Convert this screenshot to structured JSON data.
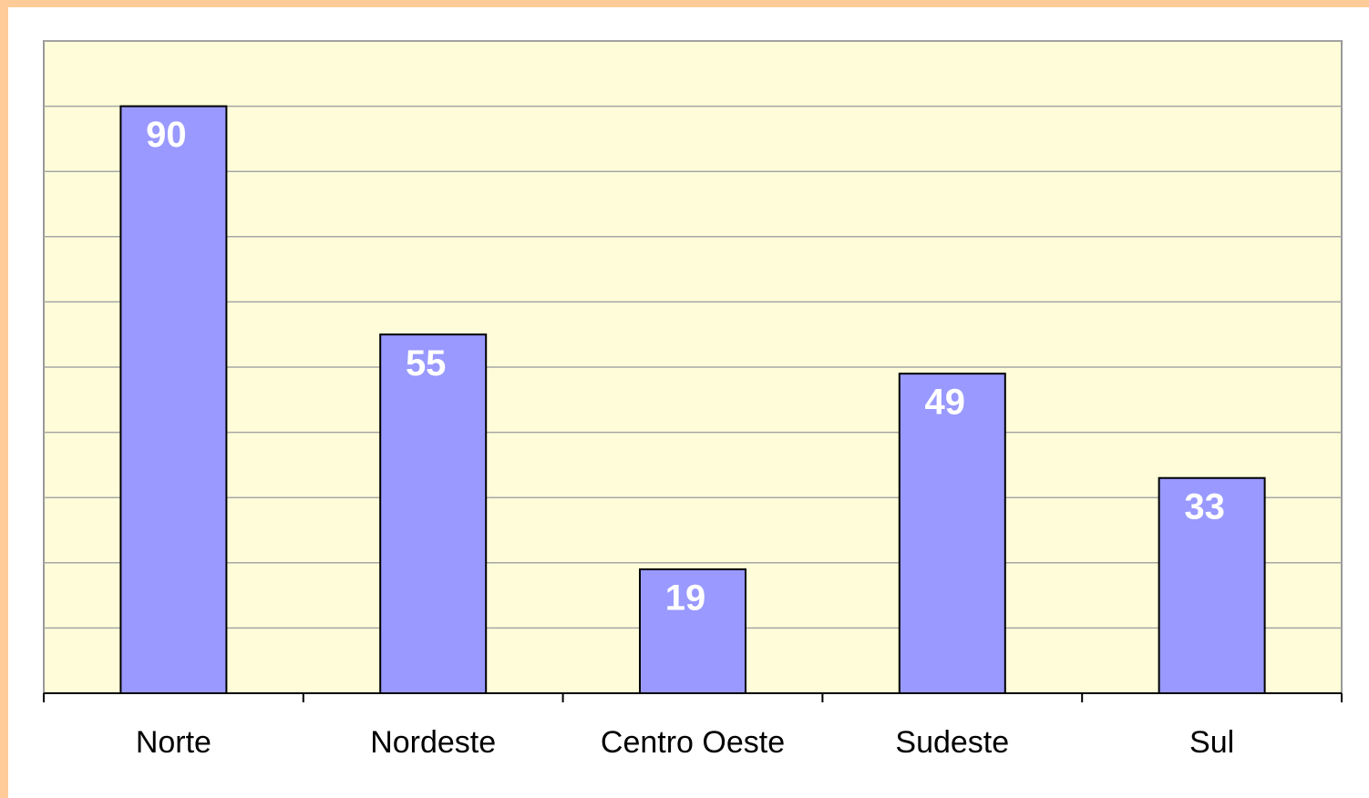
{
  "chart_data": {
    "type": "bar",
    "categories": [
      "Norte",
      "Nordeste",
      "Centro Oeste",
      "Sudeste",
      "Sul"
    ],
    "values": [
      90,
      55,
      19,
      49,
      33
    ],
    "color": "#9999ff",
    "ylim": [
      0,
      100
    ],
    "yticks": [
      0,
      10,
      20,
      30,
      40,
      50,
      60,
      70,
      80,
      90,
      100
    ],
    "grid": true
  }
}
